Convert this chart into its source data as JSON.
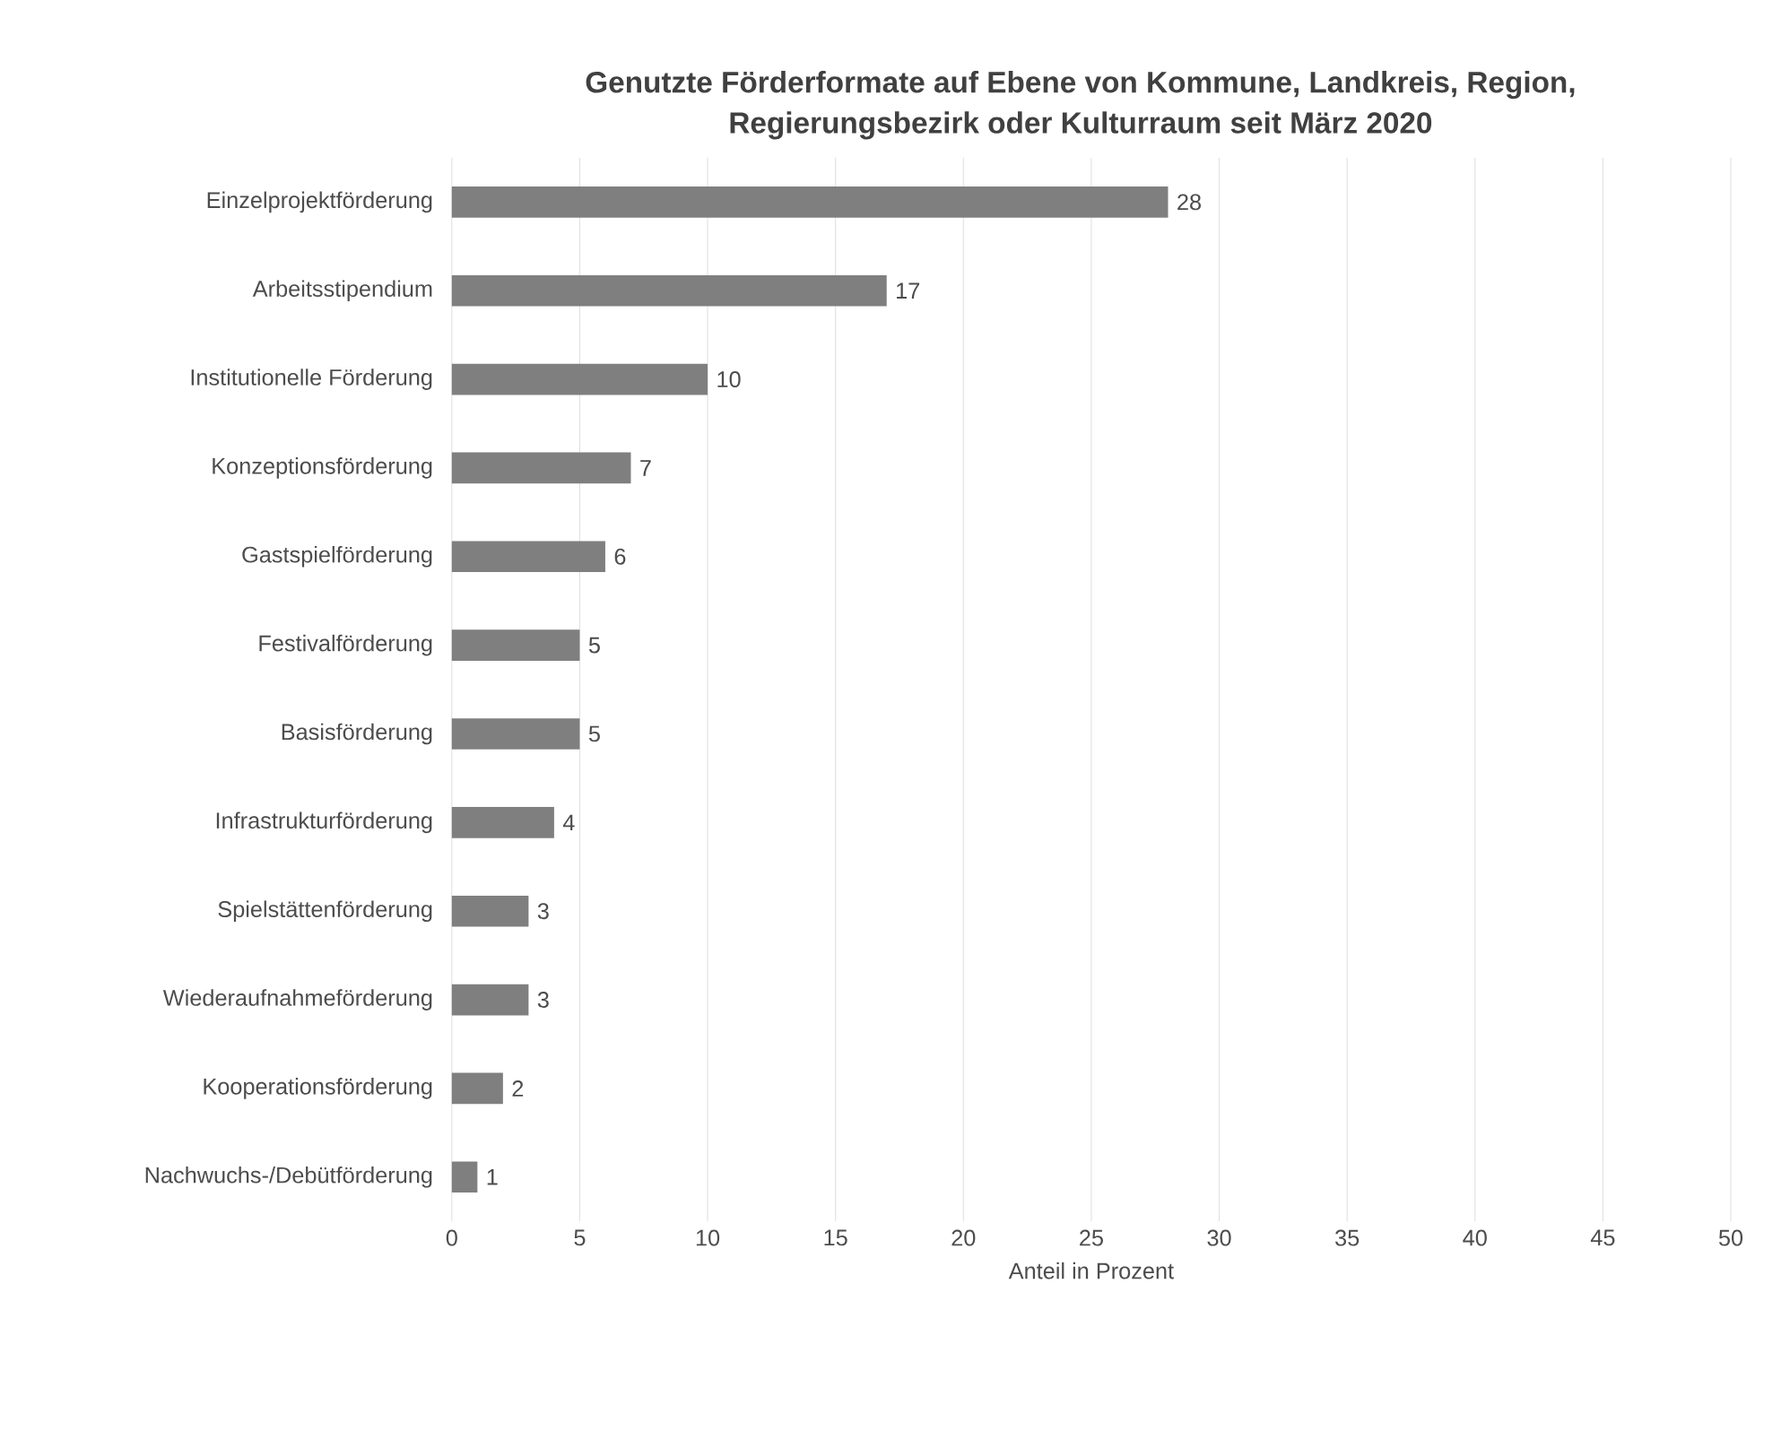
{
  "chart_data": {
    "type": "bar",
    "orientation": "horizontal",
    "title": "Genutzte Förderformate auf Ebene von Kommune, Landkreis, Region,\nRegierungsbezirk oder Kulturraum seit März 2020",
    "xlabel": "Anteil in Prozent",
    "categories": [
      "Einzelprojektförderung",
      "Arbeitsstipendium",
      "Institutionelle Förderung",
      "Konzeptionsförderung",
      "Gastspielförderung",
      "Festivalförderung",
      "Basisförderung",
      "Infrastrukturförderung",
      "Spielstättenförderung",
      "Wiederaufnahmeförderung",
      "Kooperationsförderung",
      "Nachwuchs-/Debütförderung"
    ],
    "values": [
      28,
      17,
      10,
      7,
      6,
      5,
      5,
      4,
      3,
      3,
      2,
      1
    ],
    "color": "#7f7f7f",
    "xlim": [
      0,
      50
    ],
    "xticks": [
      0,
      5,
      10,
      15,
      20,
      25,
      30,
      35,
      40,
      45,
      50
    ],
    "grid": "x",
    "data_labels": true
  }
}
